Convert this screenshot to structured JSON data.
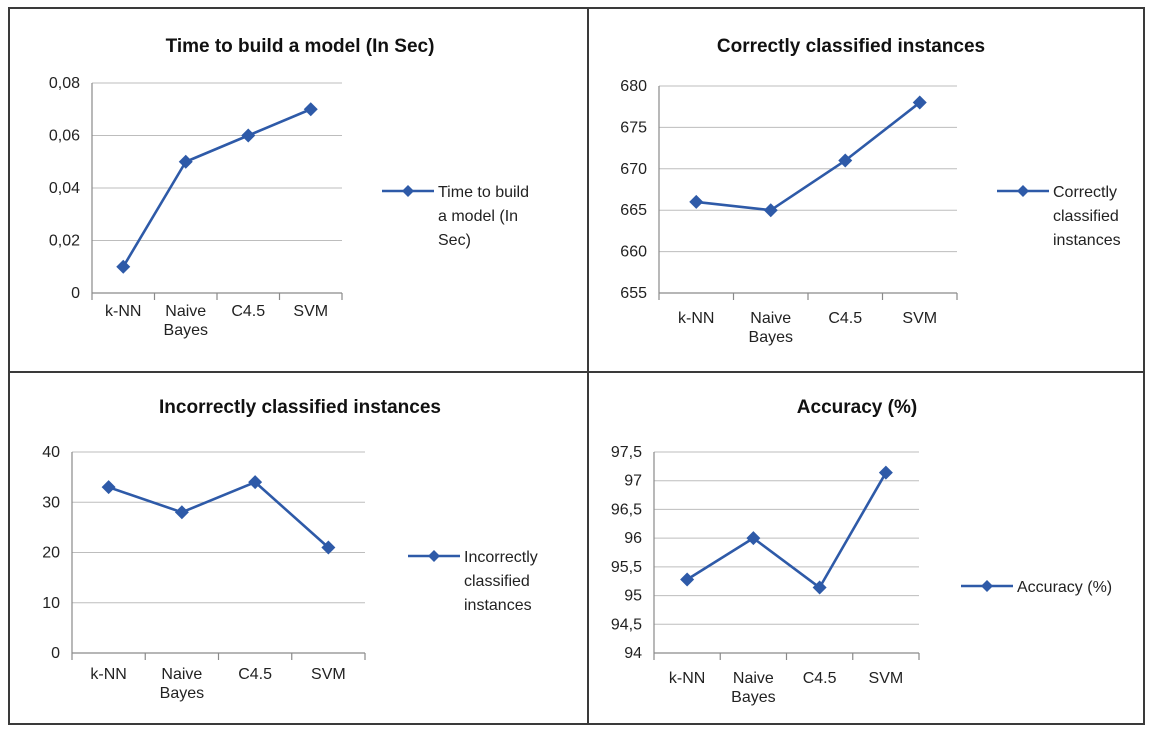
{
  "colors": {
    "series": "#2E5AA8",
    "border": "#3a3a3a"
  },
  "chart_data": [
    {
      "type": "line",
      "title": "Time to build a model (In Sec)",
      "categories": [
        [
          "k-NN"
        ],
        [
          "Naive",
          "Bayes"
        ],
        [
          "C4.5"
        ],
        [
          "SVM"
        ]
      ],
      "yticks": [
        "0",
        "0,02",
        "0,04",
        "0,06",
        "0,08"
      ],
      "ylim": [
        0,
        0.08
      ],
      "grid": true,
      "legend_position": "right",
      "series": [
        {
          "name": [
            "Time to build",
            "a model (In",
            "Sec)"
          ],
          "values": [
            0.01,
            0.05,
            0.06,
            0.07
          ]
        }
      ]
    },
    {
      "type": "line",
      "title": "Correctly classified instances",
      "categories": [
        [
          "k-NN"
        ],
        [
          "Naive",
          "Bayes"
        ],
        [
          "C4.5"
        ],
        [
          "SVM"
        ]
      ],
      "yticks": [
        "655",
        "660",
        "665",
        "670",
        "675",
        "680"
      ],
      "ylim": [
        655,
        680
      ],
      "grid": true,
      "legend_position": "right",
      "series": [
        {
          "name": [
            "Correctly",
            "classified",
            "instances"
          ],
          "values": [
            666,
            665,
            671,
            678
          ]
        }
      ]
    },
    {
      "type": "line",
      "title": "Incorrectly classified instances",
      "categories": [
        [
          "k-NN"
        ],
        [
          "Naive",
          "Bayes"
        ],
        [
          "C4.5"
        ],
        [
          "SVM"
        ]
      ],
      "yticks": [
        "0",
        "10",
        "20",
        "30",
        "40"
      ],
      "ylim": [
        0,
        40
      ],
      "grid": true,
      "legend_position": "right",
      "series": [
        {
          "name": [
            "Incorrectly",
            "classified",
            "instances"
          ],
          "values": [
            33,
            28,
            34,
            21
          ]
        }
      ]
    },
    {
      "type": "line",
      "title": "Accuracy (%)",
      "categories": [
        [
          "k-NN"
        ],
        [
          "Naive",
          "Bayes"
        ],
        [
          "C4.5"
        ],
        [
          "SVM"
        ]
      ],
      "yticks": [
        "94",
        "94,5",
        "95",
        "95,5",
        "96",
        "96,5",
        "97",
        "97,5"
      ],
      "ylim": [
        94,
        97.5
      ],
      "grid": true,
      "legend_position": "right",
      "series": [
        {
          "name": [
            "Accuracy (%)"
          ],
          "values": [
            95.28,
            96.0,
            95.14,
            97.14
          ]
        }
      ]
    }
  ]
}
